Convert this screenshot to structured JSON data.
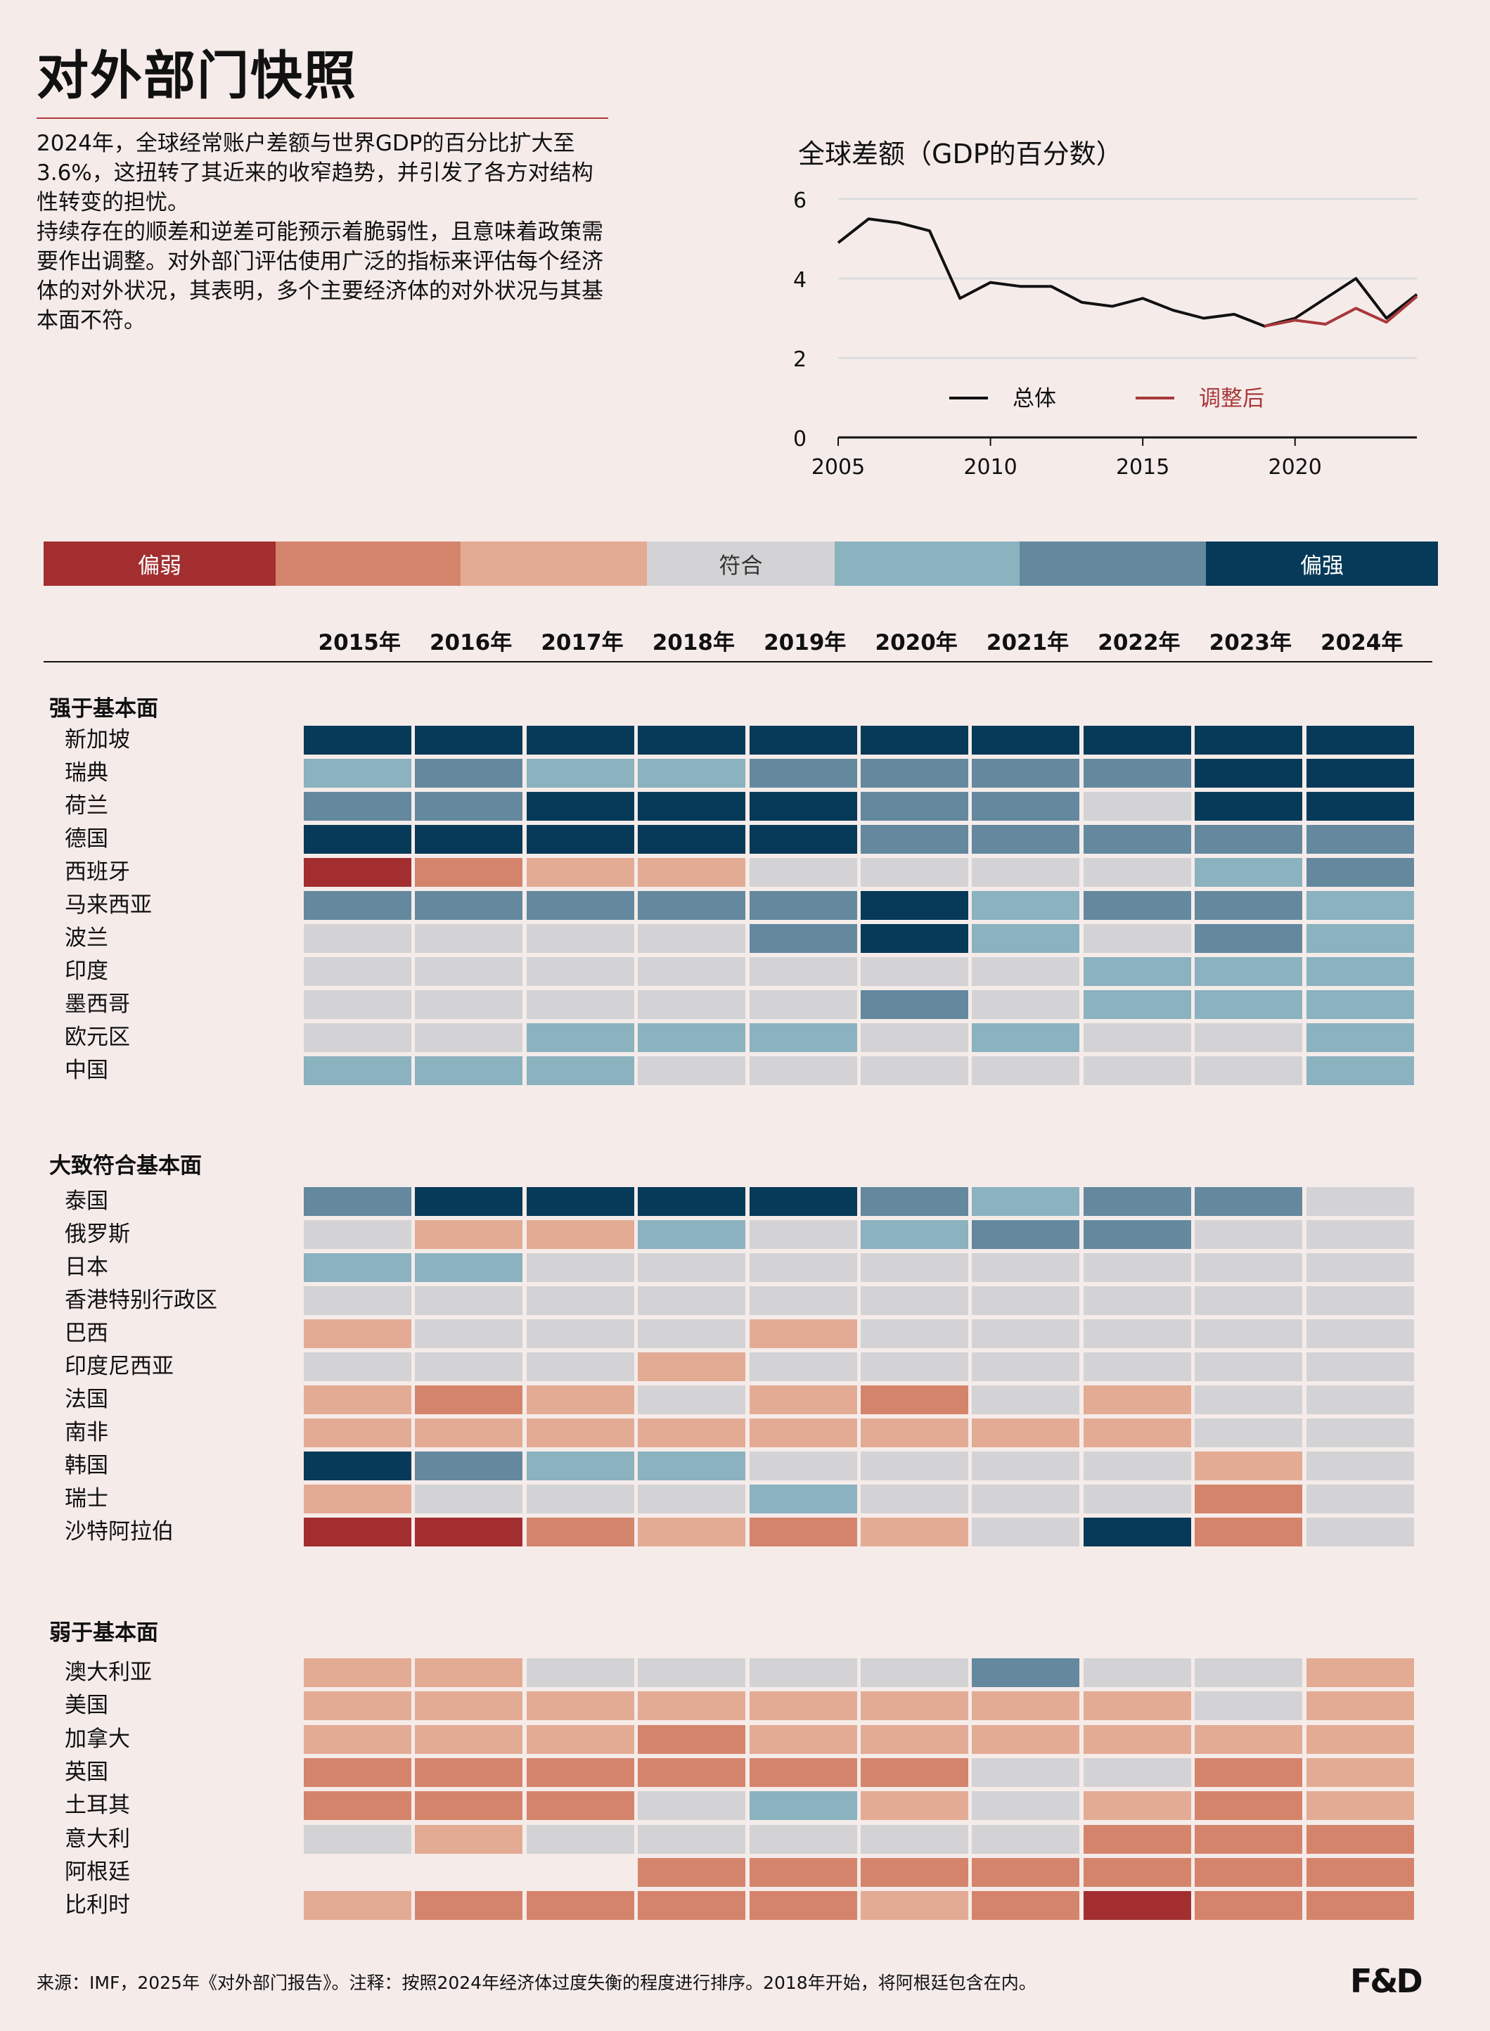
{
  "title": "对外部门快照",
  "intro": [
    "2024年，全球经常账户差额与世界GDP的百分比扩大至3.6%，这扭转了其近来的收窄趋势，并引发了各方对结构性转变的担忧。",
    "持续存在的顺差和逆差可能预示着脆弱性，且意味着政策需要作出调整。对外部门评估使用广泛的指标来评估每个经济体的对外状况，其表明，多个主要经济体的对外状况与其基本面不符。"
  ],
  "scale": {
    "labels": [
      "偏弱",
      "",
      "",
      "符合",
      "",
      "",
      "偏强"
    ],
    "colors": [
      "#a22e30",
      "#d5846c",
      "#e3ab94",
      "#d3d3d5",
      "#8ab2bf",
      "#64899f",
      "#063a58"
    ]
  },
  "chart_data": [
    {
      "type": "line",
      "title": "全球差额（GDP的百分数）",
      "xlim": [
        2005,
        2024
      ],
      "ylim": [
        0,
        6
      ],
      "yticks": [
        "0",
        "2",
        "4",
        "6"
      ],
      "xticks": [
        "2005",
        "2010",
        "2015",
        "2020"
      ],
      "grid": true,
      "legend": "bottom-center",
      "series": [
        {
          "name": "总体",
          "color": "#111111",
          "x": [
            2005,
            2006,
            2007,
            2008,
            2009,
            2010,
            2011,
            2012,
            2013,
            2014,
            2015,
            2016,
            2017,
            2018,
            2019,
            2020,
            2021,
            2022,
            2023,
            2024
          ],
          "y": [
            4.9,
            5.5,
            5.4,
            5.2,
            3.5,
            3.9,
            3.8,
            3.8,
            3.4,
            3.3,
            3.5,
            3.2,
            3.0,
            3.1,
            2.8,
            3.0,
            3.5,
            4.0,
            3.0,
            3.6
          ]
        },
        {
          "name": "调整后",
          "color": "#a8383a",
          "x": [
            2019,
            2020,
            2021,
            2022,
            2023,
            2024
          ],
          "y": [
            2.8,
            2.95,
            2.85,
            3.25,
            2.9,
            3.55
          ]
        }
      ]
    },
    {
      "type": "heatmap",
      "columns": [
        "2015年",
        "2016年",
        "2017年",
        "2018年",
        "2019年",
        "2020年",
        "2021年",
        "2022年",
        "2023年",
        "2024年"
      ],
      "value_scale": "-3 = 偏弱 … 0 = 符合 … 3 = 偏强",
      "groups": [
        {
          "title": "强于基本面",
          "rows": [
            {
              "label": "新加坡",
              "values": [
                3,
                3,
                3,
                3,
                3,
                3,
                3,
                3,
                3,
                3
              ]
            },
            {
              "label": "瑞典",
              "values": [
                1,
                2,
                1,
                1,
                2,
                2,
                2,
                2,
                3,
                3
              ]
            },
            {
              "label": "荷兰",
              "values": [
                2,
                2,
                3,
                3,
                3,
                2,
                2,
                0,
                3,
                3
              ]
            },
            {
              "label": "德国",
              "values": [
                3,
                3,
                3,
                3,
                3,
                2,
                2,
                2,
                2,
                2
              ]
            },
            {
              "label": "西班牙",
              "values": [
                -3,
                -2,
                -1,
                -1,
                0,
                0,
                0,
                0,
                1,
                2
              ]
            },
            {
              "label": "马来西亚",
              "values": [
                2,
                2,
                2,
                2,
                2,
                3,
                1,
                2,
                2,
                1
              ]
            },
            {
              "label": "波兰",
              "values": [
                0,
                0,
                0,
                0,
                2,
                3,
                1,
                0,
                2,
                1
              ]
            },
            {
              "label": "印度",
              "values": [
                0,
                0,
                0,
                0,
                0,
                0,
                0,
                1,
                1,
                1
              ]
            },
            {
              "label": "墨西哥",
              "values": [
                0,
                0,
                0,
                0,
                0,
                2,
                0,
                1,
                1,
                1
              ]
            },
            {
              "label": "欧元区",
              "values": [
                0,
                0,
                1,
                1,
                1,
                0,
                1,
                0,
                0,
                1
              ]
            },
            {
              "label": "中国",
              "values": [
                1,
                1,
                1,
                0,
                0,
                0,
                0,
                0,
                0,
                1
              ]
            }
          ]
        },
        {
          "title": "大致符合基本面",
          "rows": [
            {
              "label": "泰国",
              "values": [
                2,
                3,
                3,
                3,
                3,
                2,
                1,
                2,
                2,
                0
              ]
            },
            {
              "label": "俄罗斯",
              "values": [
                0,
                -1,
                -1,
                1,
                0,
                1,
                2,
                2,
                0,
                0
              ]
            },
            {
              "label": "日本",
              "values": [
                1,
                1,
                0,
                0,
                0,
                0,
                0,
                0,
                0,
                0
              ]
            },
            {
              "label": "香港特别行政区",
              "values": [
                0,
                0,
                0,
                0,
                0,
                0,
                0,
                0,
                0,
                0
              ]
            },
            {
              "label": "巴西",
              "values": [
                -1,
                0,
                0,
                0,
                -1,
                0,
                0,
                0,
                0,
                0
              ]
            },
            {
              "label": "印度尼西亚",
              "values": [
                0,
                0,
                0,
                -1,
                0,
                0,
                0,
                0,
                0,
                0
              ]
            },
            {
              "label": "法国",
              "values": [
                -1,
                -2,
                -1,
                0,
                -1,
                -2,
                0,
                -1,
                0,
                0
              ]
            },
            {
              "label": "南非",
              "values": [
                -1,
                -1,
                -1,
                -1,
                -1,
                -1,
                -1,
                -1,
                0,
                0
              ]
            },
            {
              "label": "韩国",
              "values": [
                3,
                2,
                1,
                1,
                0,
                0,
                0,
                0,
                -1,
                0
              ]
            },
            {
              "label": "瑞士",
              "values": [
                -1,
                0,
                0,
                0,
                1,
                0,
                0,
                0,
                -2,
                0
              ]
            },
            {
              "label": "沙特阿拉伯",
              "values": [
                -3,
                -3,
                -2,
                -1,
                -2,
                -1,
                0,
                3,
                -2,
                0
              ]
            }
          ]
        },
        {
          "title": "弱于基本面",
          "rows": [
            {
              "label": "澳大利亚",
              "values": [
                -1,
                -1,
                0,
                0,
                0,
                0,
                2,
                0,
                0,
                -1
              ]
            },
            {
              "label": "美国",
              "values": [
                -1,
                -1,
                -1,
                -1,
                -1,
                -1,
                -1,
                -1,
                0,
                -1
              ]
            },
            {
              "label": "加拿大",
              "values": [
                -1,
                -1,
                -1,
                -2,
                -1,
                -1,
                -1,
                -1,
                -1,
                -1
              ]
            },
            {
              "label": "英国",
              "values": [
                -2,
                -2,
                -2,
                -2,
                -2,
                -2,
                0,
                0,
                -2,
                -1
              ]
            },
            {
              "label": "土耳其",
              "values": [
                -2,
                -2,
                -2,
                0,
                1,
                -1,
                0,
                -1,
                -2,
                -1
              ]
            },
            {
              "label": "意大利",
              "values": [
                0,
                -1,
                0,
                0,
                0,
                0,
                0,
                -2,
                -2,
                -2
              ]
            },
            {
              "label": "阿根廷",
              "values": [
                null,
                null,
                null,
                -2,
                -2,
                -2,
                -2,
                -2,
                -2,
                -2
              ]
            },
            {
              "label": "比利时",
              "values": [
                -1,
                -2,
                -2,
                -2,
                -2,
                -1,
                -2,
                -3,
                -2,
                -2
              ]
            }
          ]
        }
      ]
    }
  ],
  "footer": "来源：IMF，2025年《对外部门报告》。注释：按照2024年经济体过度失衡的程度进行排序。2018年开始，将阿根廷包含在内。",
  "logo": "F&D"
}
